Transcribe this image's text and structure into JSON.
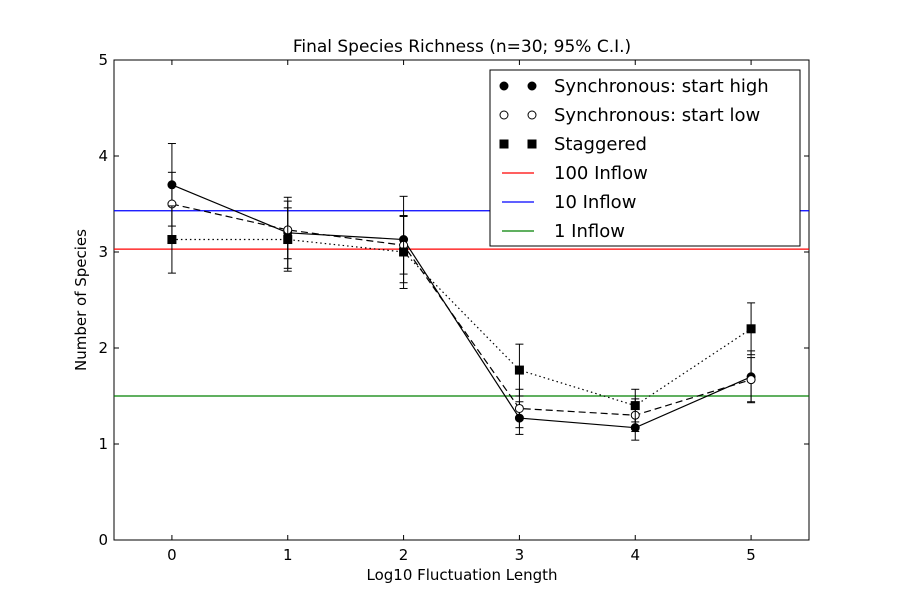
{
  "chart_data": {
    "type": "line",
    "title": "Final Species Richness (n=30; 95% C.I.)",
    "xlabel": "Log10 Fluctuation Length",
    "ylabel": "Number of Species",
    "xlim": [
      -0.5,
      5.5
    ],
    "ylim": [
      0,
      5
    ],
    "xticks": [
      "0",
      "1",
      "2",
      "3",
      "4",
      "5"
    ],
    "yticks": [
      "0",
      "1",
      "2",
      "3",
      "4",
      "5"
    ],
    "grid": false,
    "legend_position": "top-right",
    "x": [
      0,
      1,
      2,
      3,
      4,
      5
    ],
    "series": [
      {
        "name": "Synchronous: start high",
        "marker": "filled-circle",
        "line": "solid",
        "values": [
          3.7,
          3.2,
          3.13,
          1.27,
          1.17,
          1.7
        ],
        "ci": [
          0.43,
          0.37,
          0.45,
          0.17,
          0.13,
          0.27
        ]
      },
      {
        "name": "Synchronous: start low",
        "marker": "open-circle",
        "line": "dashed",
        "values": [
          3.5,
          3.23,
          3.07,
          1.37,
          1.3,
          1.67
        ],
        "ci": [
          0.33,
          0.3,
          0.3,
          0.2,
          0.17,
          0.23
        ]
      },
      {
        "name": "Staggered",
        "marker": "filled-square",
        "line": "dotted",
        "values": [
          3.13,
          3.13,
          3.0,
          1.77,
          1.4,
          2.2
        ],
        "ci": [
          0.35,
          0.33,
          0.38,
          0.27,
          0.17,
          0.27
        ]
      }
    ],
    "reference_lines": [
      {
        "name": "100 Inflow",
        "value": 3.03,
        "color": "#ff0000"
      },
      {
        "name": "10 Inflow",
        "value": 3.43,
        "color": "#0000ff"
      },
      {
        "name": "1 Inflow",
        "value": 1.5,
        "color": "#008000"
      }
    ]
  }
}
